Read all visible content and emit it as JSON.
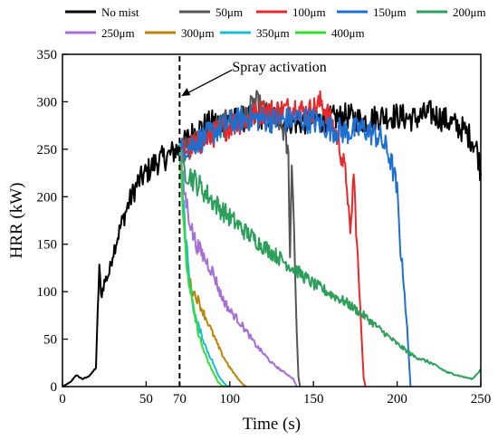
{
  "chart_data": {
    "type": "line",
    "title": "",
    "xlabel": "Time (s)",
    "ylabel": "HRR (kW)",
    "xlim": [
      0,
      250
    ],
    "ylim": [
      0,
      350
    ],
    "x_ticks": [
      0,
      50,
      70,
      100,
      150,
      200,
      250
    ],
    "y_ticks": [
      0,
      50,
      100,
      150,
      200,
      250,
      300,
      350
    ],
    "grid": false,
    "legend_position": "top",
    "annotation": {
      "text": "Spray activation",
      "x": 70,
      "y": 305
    },
    "series": [
      {
        "name": "No mist",
        "color": "#000000",
        "x": [
          0,
          5,
          8,
          12,
          15,
          18,
          20,
          22,
          23,
          25,
          28,
          30,
          35,
          40,
          45,
          50,
          55,
          60,
          65,
          68,
          70,
          75,
          80,
          85,
          90,
          100,
          110,
          120,
          130,
          140,
          150,
          160,
          170,
          180,
          190,
          200,
          210,
          220,
          230,
          240,
          245,
          248,
          250
        ],
        "y": [
          0,
          5,
          12,
          8,
          10,
          15,
          20,
          128,
          95,
          110,
          120,
          140,
          170,
          195,
          215,
          225,
          235,
          240,
          245,
          250,
          248,
          262,
          270,
          275,
          278,
          280,
          282,
          285,
          283,
          278,
          280,
          282,
          285,
          280,
          285,
          285,
          282,
          288,
          280,
          270,
          260,
          248,
          225
        ]
      },
      {
        "name": "50μm",
        "color": "#555555",
        "x": [
          70,
          75,
          80,
          90,
          100,
          110,
          115,
          120,
          125,
          130,
          133,
          135,
          136,
          137,
          138,
          139,
          140,
          141,
          142
        ],
        "y": [
          248,
          250,
          258,
          270,
          280,
          285,
          300,
          290,
          280,
          280,
          265,
          240,
          140,
          230,
          200,
          120,
          60,
          10,
          0
        ]
      },
      {
        "name": "100μm",
        "color": "#e8292c",
        "x": [
          70,
          80,
          90,
          100,
          110,
          120,
          130,
          140,
          145,
          150,
          155,
          160,
          165,
          170,
          172,
          174,
          176,
          178,
          180,
          181
        ],
        "y": [
          248,
          255,
          265,
          275,
          282,
          290,
          290,
          295,
          288,
          292,
          300,
          280,
          260,
          215,
          155,
          225,
          150,
          80,
          10,
          0
        ]
      },
      {
        "name": "150μm",
        "color": "#1f6fd0",
        "x": [
          70,
          80,
          90,
          100,
          110,
          120,
          130,
          140,
          150,
          160,
          170,
          180,
          190,
          195,
          198,
          200,
          202,
          204,
          206,
          208
        ],
        "y": [
          248,
          258,
          268,
          278,
          283,
          282,
          280,
          282,
          280,
          272,
          268,
          272,
          262,
          245,
          225,
          205,
          145,
          110,
          60,
          0
        ]
      },
      {
        "name": "200μm",
        "color": "#2e9e5b",
        "x": [
          70,
          72,
          75,
          80,
          90,
          100,
          110,
          120,
          130,
          140,
          150,
          160,
          170,
          180,
          190,
          200,
          210,
          220,
          230,
          240,
          245,
          250
        ],
        "y": [
          255,
          230,
          225,
          215,
          195,
          178,
          162,
          148,
          135,
          122,
          108,
          98,
          88,
          75,
          60,
          45,
          32,
          25,
          15,
          10,
          8,
          18
        ]
      },
      {
        "name": "250μm",
        "color": "#a56fd4",
        "x": [
          70,
          72,
          75,
          78,
          80,
          85,
          90,
          95,
          100,
          105,
          110,
          115,
          120,
          125,
          130,
          135,
          138,
          140
        ],
        "y": [
          255,
          215,
          185,
          160,
          150,
          135,
          120,
          95,
          80,
          70,
          58,
          45,
          35,
          25,
          18,
          12,
          8,
          0
        ]
      },
      {
        "name": "300μm",
        "color": "#b8860b",
        "x": [
          70,
          72,
          74,
          76,
          78,
          80,
          85,
          90,
          95,
          100,
          105,
          108,
          110
        ],
        "y": [
          250,
          190,
          140,
          110,
          100,
          95,
          75,
          55,
          35,
          20,
          8,
          2,
          0
        ]
      },
      {
        "name": "350μm",
        "color": "#17becf",
        "x": [
          70,
          72,
          74,
          76,
          78,
          80,
          83,
          86,
          90,
          93,
          96,
          98,
          100
        ],
        "y": [
          255,
          200,
          150,
          110,
          85,
          70,
          55,
          40,
          25,
          12,
          5,
          1,
          0
        ]
      },
      {
        "name": "400μm",
        "color": "#33dd33",
        "x": [
          70,
          71,
          72,
          73,
          75,
          78,
          80,
          83,
          86,
          90,
          93,
          95,
          97
        ],
        "y": [
          258,
          225,
          185,
          150,
          115,
          85,
          65,
          45,
          30,
          15,
          5,
          1,
          0
        ]
      }
    ]
  }
}
